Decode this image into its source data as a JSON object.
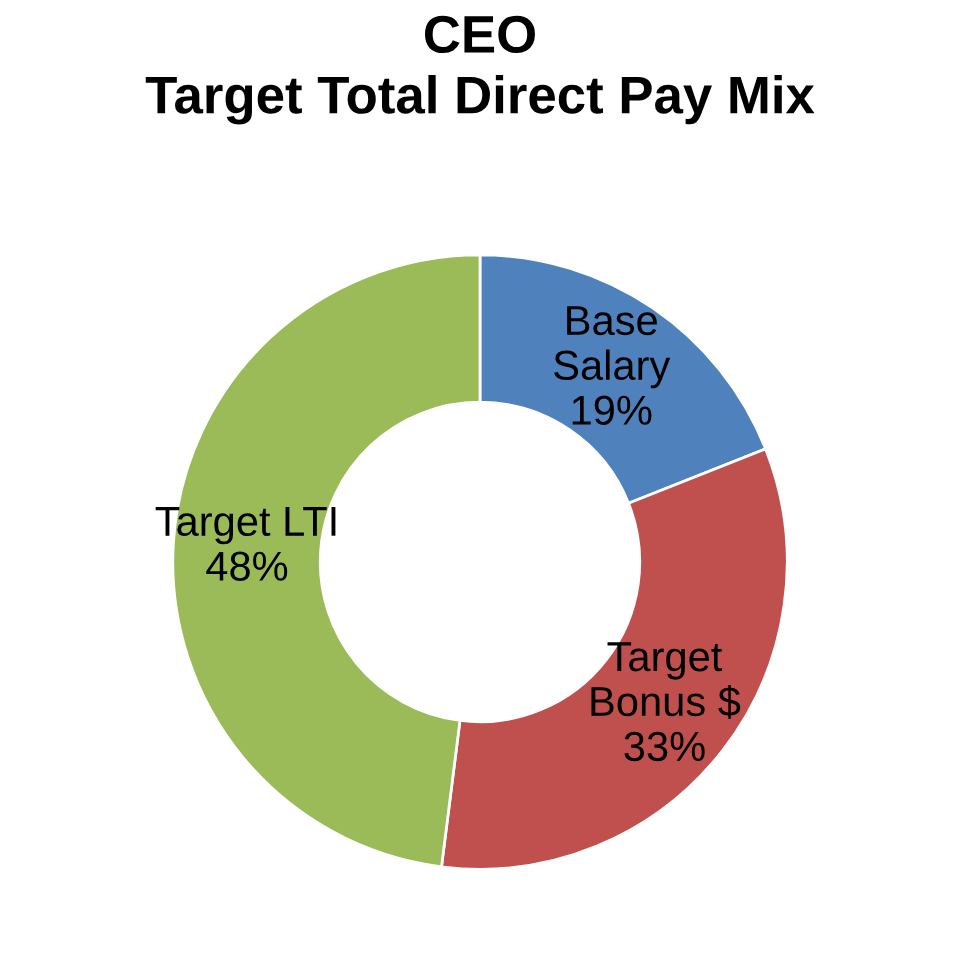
{
  "chart_data": {
    "type": "donut",
    "title": "CEO\nTarget Total Direct Pay Mix",
    "categories": [
      "Base\nSalary",
      "Target\nBonus $",
      "Target LTI"
    ],
    "values": [
      19,
      33,
      48
    ],
    "value_labels": [
      "19%",
      "33%",
      "48%"
    ],
    "colors": [
      "#4f81bd",
      "#c0504d",
      "#9bbb59"
    ]
  }
}
